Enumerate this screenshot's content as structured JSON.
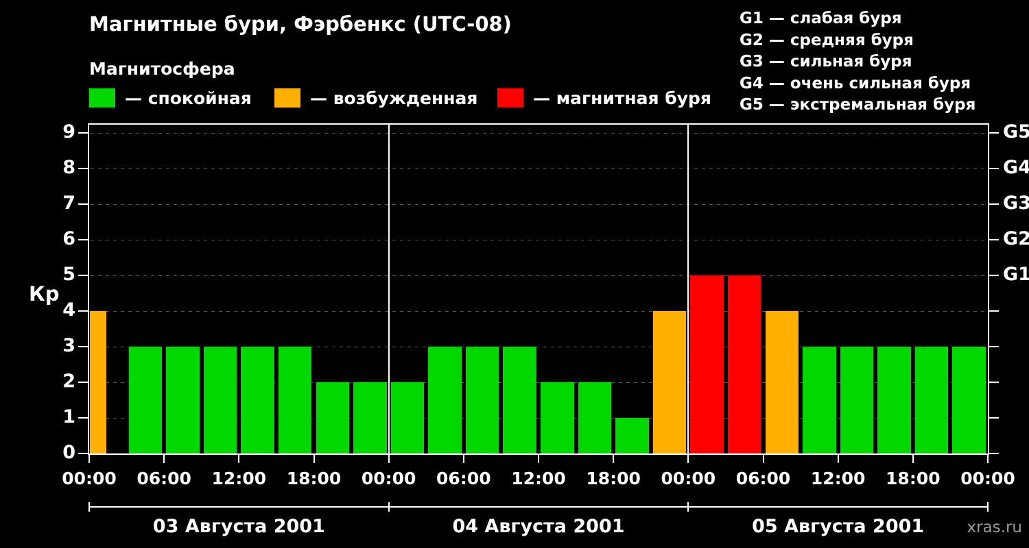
{
  "title": "Магнитные бури, Фэрбенкс (UTC-08)",
  "legend": {
    "heading": "Магнитосфера",
    "items": [
      {
        "id": "quiet",
        "label": "— спокойная",
        "color": "#00d800"
      },
      {
        "id": "excited",
        "label": "— возбужденная",
        "color": "#ffb000"
      },
      {
        "id": "storm",
        "label": "— магнитная буря",
        "color": "#ff0000"
      }
    ]
  },
  "storm_scale": [
    "G1 — слабая буря",
    "G2 — средняя буря",
    "G3 — сильная буря",
    "G4 — очень сильная буря",
    "G5 — экстремальная буря"
  ],
  "watermark": "xras.ru",
  "chart_data": {
    "type": "bar",
    "title": "Магнитные бури, Фэрбенкс (UTC-08)",
    "ylabel": "Кр",
    "ylim": [
      0,
      9.2
    ],
    "yticks": [
      0,
      1,
      2,
      3,
      4,
      5,
      6,
      7,
      8,
      9
    ],
    "x_tick_labels": [
      "00:00",
      "06:00",
      "12:00",
      "18:00",
      "00:00",
      "06:00",
      "12:00",
      "18:00",
      "00:00",
      "06:00",
      "12:00",
      "18:00",
      "00:00"
    ],
    "interval_hours": 3,
    "grid": "dashed-horizontal",
    "g_scale": [
      {
        "kp": 5,
        "g": "G1"
      },
      {
        "kp": 6,
        "g": "G2"
      },
      {
        "kp": 7,
        "g": "G3"
      },
      {
        "kp": 8,
        "g": "G4"
      },
      {
        "kp": 9,
        "g": "G5"
      }
    ],
    "color_rule": {
      "quiet_kp_max": 3,
      "excited_kp": 4,
      "storm_kp_min": 5
    },
    "days": [
      {
        "date": "03 Августа 2001",
        "kp": [
          4,
          3,
          3,
          3,
          3,
          3,
          2,
          2
        ]
      },
      {
        "date": "04 Августа 2001",
        "kp": [
          2,
          3,
          3,
          3,
          2,
          2,
          1,
          4
        ]
      },
      {
        "date": "05 Августа 2001",
        "kp": [
          5,
          5,
          4,
          3,
          3,
          3,
          3,
          3
        ]
      }
    ],
    "first_bar_half_width": true
  }
}
